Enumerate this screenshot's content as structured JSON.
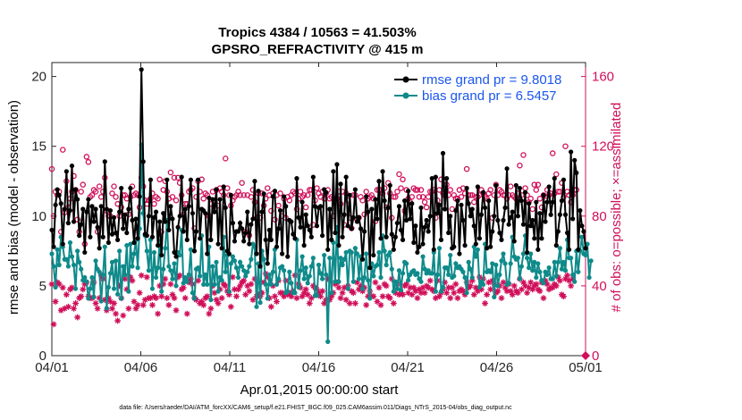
{
  "chart_data": {
    "type": "line",
    "title_line1": "Tropics 4384 / 10563 = 41.503%",
    "title_line2": "GPSRO_REFRACTIVITY @ 415 m",
    "xlabel": "Apr.01,2015 00:00:00 start",
    "ylabel_left": "rmse and bias (model - observation)",
    "ylabel_right": "# of obs: o=possible; ×=assimilated",
    "x_ticks": [
      "04/01",
      "04/06",
      "04/11",
      "04/16",
      "04/21",
      "04/26",
      "05/01"
    ],
    "x_range": [
      0,
      30
    ],
    "ylim_left": [
      0,
      21
    ],
    "y_ticks_left": [
      "0",
      "5",
      "10",
      "15",
      "20"
    ],
    "y_tick_values_left": [
      0,
      5,
      10,
      15,
      20
    ],
    "ylim_right": [
      0,
      168
    ],
    "y_ticks_right": [
      "0",
      "40",
      "80",
      "120",
      "160"
    ],
    "y_tick_values_right": [
      0,
      40,
      80,
      120,
      160
    ],
    "legend": {
      "rmse_label": "rmse grand pr = 9.8018",
      "bias_label": "bias grand pr = 6.5457"
    },
    "colors": {
      "rmse": "#000000",
      "bias": "#0f8a8a",
      "obs": "#d0105a",
      "legend_text": "#1a56ee"
    },
    "series": [
      {
        "name": "rmse",
        "values": [
          9.0,
          7.8,
          10.8,
          11.9,
          11.5,
          10.9,
          8.0,
          10.5,
          13.2,
          9.5,
          10.4,
          13.6,
          9.6,
          11.9,
          11.2,
          8.6,
          9.4,
          10.5,
          7.4,
          10.3,
          11.2,
          8.5,
          10.7,
          9.6,
          10.5,
          9.2,
          7.7,
          10.7,
          8.5,
          13.9,
          10.5,
          8.1,
          10.4,
          8.7,
          9.9,
          8.8,
          8.3,
          10.3,
          12.0,
          9.1,
          10.1,
          8.8,
          10.5,
          12.0,
          9.7,
          8.1,
          9.8,
          8.4,
          11.4,
          20.5,
          13.9,
          8.7,
          8.6,
          10.0,
          12.6,
          8.5,
          9.9,
          10.3,
          7.9,
          9.6,
          7.2,
          10.2,
          9.6,
          12.6,
          9.0,
          10.7,
          9.8,
          7.4,
          7.1,
          9.2,
          10.0,
          12.8,
          8.9,
          10.5,
          8.3,
          10.7,
          12.6,
          10.2,
          7.5,
          8.9,
          12.6,
          8.4,
          10.5,
          10.4,
          10.2,
          7.3,
          11.3,
          8.3,
          11.2,
          10.3,
          11.9,
          8.0,
          11.2,
          7.7,
          12.1,
          10.6,
          7.5,
          7.3,
          11.5,
          9.5,
          8.2,
          8.9,
          8.9,
          9.5,
          9.1,
          8.2,
          8.8,
          10.3,
          8.0,
          9.4,
          9.8,
          12.5,
          7.3,
          11.8,
          6.4,
          10.3,
          11.6,
          8.3,
          6.6,
          9.0,
          8.3,
          11.4,
          11.8,
          7.8,
          9.1,
          10.4,
          7.3,
          11.4,
          10.7,
          7.1,
          9.7,
          9.6,
          8.7,
          8.4,
          12.7,
          9.9,
          9.2,
          11.0,
          7.9,
          10.1,
          9.3,
          9.0,
          8.5,
          12.8,
          10.7,
          9.3,
          10.6,
          10.7,
          8.6,
          11.9,
          11.7,
          7.6,
          10.5,
          8.3,
          13.2,
          8.8,
          13.7,
          7.9,
          12.3,
          8.5,
          10.1,
          12.8,
          9.3,
          11.5,
          9.1,
          9.9,
          11.9,
          9.6,
          9.9,
          9.1,
          6.9,
          8.9,
          11.4,
          10.3,
          6.3,
          10.5,
          7.2,
          11.2,
          9.8,
          12.5,
          8.4,
          13.2,
          11.1,
          8.5,
          10.6,
          12.2,
          8.7,
          7.6,
          8.5,
          9.5,
          10.7,
          9.0,
          8.3,
          11.1,
          9.7,
          11.8,
          9.8,
          10.9,
          8.1,
          9.3,
          7.4,
          7.8,
          10.6,
          8.0,
          9.2,
          9.7,
          8.9,
          10.0,
          12.7,
          7.6,
          12.8,
          10.2,
          10.8,
          8.3,
          14.5,
          10.5,
          12.7,
          8.8,
          10.0,
          7.7,
          7.8,
          10.4,
          11.1,
          7.3,
          10.8,
          9.7,
          7.9,
          12.0,
          10.9,
          10.0,
          10.5,
          9.3,
          8.0,
          12.1,
          8.4,
          10.1,
          11.7,
          10.6,
          7.7,
          11.1,
          7.8,
          8.9,
          10.0,
          12.2,
          9.7,
          8.8,
          8.3,
          9.7,
          10.6,
          13.4,
          9.4,
          9.9,
          10.3,
          8.2,
          12.2,
          10.0,
          12.0,
          11.1,
          9.4,
          11.7,
          7.4,
          10.9,
          9.3,
          9.7,
          8.4,
          11.0,
          7.6,
          10.2,
          8.4,
          11.5,
          9.6,
          11.0,
          12.1,
          10.1,
          11.0,
          12.7,
          7.9,
          8.9,
          10.1,
          11.1,
          12.6,
          10.1,
          8.8,
          7.6,
          14.6,
          9.8,
          14.0,
          13.1,
          7.6,
          10.4,
          9.3,
          8.9,
          7.7
        ]
      },
      {
        "name": "bias",
        "values": [
          7.3,
          6.4,
          4.9,
          7.6,
          6.5,
          8.5,
          7.8,
          6.9,
          6.9,
          6.4,
          8.1,
          7.1,
          6.5,
          4.8,
          7.5,
          6.7,
          6.2,
          5.4,
          5.6,
          5.3,
          4.1,
          4.8,
          5.6,
          4.2,
          6.8,
          6.2,
          6.0,
          3.9,
          5.8,
          7.8,
          3.4,
          4.9,
          5.9,
          6.7,
          4.8,
          6.8,
          4.4,
          7.5,
          4.1,
          6.4,
          5.8,
          7.9,
          4.6,
          8.0,
          6.4,
          7.3,
          8.3,
          6.3,
          9.1,
          15.1,
          10.2,
          8.6,
          7.5,
          6.1,
          8.3,
          4.8,
          7.4,
          5.6,
          6.3,
          8.2,
          4.6,
          6.2,
          7.7,
          9.7,
          6.4,
          6.1,
          5.5,
          6.6,
          5.0,
          7.4,
          7.2,
          9.0,
          5.2,
          5.6,
          5.3,
          5.8,
          7.6,
          4.5,
          4.1,
          6.2,
          6.3,
          5.7,
          8.6,
          5.1,
          5.8,
          5.1,
          7.8,
          4.0,
          6.4,
          5.1,
          6.7,
          4.6,
          5.6,
          5.4,
          8.5,
          6.0,
          7.2,
          4.6,
          6.6,
          7.1,
          6.8,
          6.3,
          5.6,
          6.7,
          6.4,
          6.1,
          5.7,
          6.0,
          6.4,
          6.9,
          8.0,
          7.8,
          3.5,
          6.6,
          3.8,
          7.5,
          6.9,
          5.1,
          4.1,
          5.8,
          5.1,
          6.0,
          7.6,
          5.1,
          5.5,
          6.3,
          6.4,
          6.1,
          4.5,
          4.6,
          6.0,
          5.2,
          4.5,
          4.5,
          8.3,
          4.9,
          6.1,
          7.1,
          5.5,
          6.3,
          5.2,
          5.7,
          6.4,
          7.0,
          4.3,
          4.3,
          6.5,
          5.9,
          5.5,
          7.2,
          5.8,
          1.0,
          7.0,
          4.5,
          8.1,
          5.3,
          9.2,
          5.3,
          7.0,
          6.5,
          6.9,
          7.4,
          4.8,
          7.5,
          7.4,
          5.3,
          7.7,
          7.3,
          5.5,
          7.1,
          4.8,
          5.6,
          7.3,
          5.4,
          4.1,
          6.6,
          5.7,
          6.4,
          6.5,
          7.4,
          5.6,
          8.6,
          7.5,
          6.5,
          7.2,
          7.4,
          6.2,
          4.6,
          5.3,
          4.8,
          6.1,
          4.7,
          5.9,
          6.7,
          6.6,
          5.4,
          5.8,
          6.0,
          6.1,
          5.8,
          5.9,
          5.5,
          5.3,
          7.1,
          6.2,
          5.9,
          6.1,
          5.9,
          5.9,
          7.4,
          4.6,
          5.8,
          7.7,
          4.6,
          4.9,
          6.3,
          6.3,
          5.8,
          7.2,
          5.6,
          5.7,
          6.6,
          6.3,
          6.4,
          6.2,
          6.0,
          5.6,
          4.5,
          6.7,
          6.2,
          5.6,
          7.8,
          7.1,
          7.6,
          4.9,
          5.3,
          5.1,
          8.0,
          6.0,
          6.1,
          6.0,
          6.6,
          4.2,
          6.5,
          5.0,
          5.8,
          6.8,
          7.3,
          6.6,
          5.1,
          5.2,
          6.6,
          8.5,
          7.1,
          6.9,
          7.0,
          5.5,
          6.4,
          7.3,
          8.6,
          7.0,
          6.3,
          7.3,
          6.1,
          6.7,
          5.6,
          6.6,
          6.0,
          5.4,
          5.2,
          6.0,
          5.8,
          6.3,
          5.5,
          5.5,
          6.7,
          5.7,
          6.7,
          7.7,
          6.2,
          6.7,
          6.1,
          8.3,
          7.0,
          7.0,
          5.8,
          5.3,
          7.5,
          6.0,
          7.5,
          8.5,
          7.3,
          7.2,
          8.0,
          5.6,
          6.8
        ]
      },
      {
        "name": "obs_possible",
        "axis": "right",
        "values": [
          107,
          80,
          94,
          92,
          94,
          71,
          118,
          82,
          100,
          85,
          90,
          94,
          103,
          95,
          78,
          71,
          94,
          98,
          64,
          114,
          111,
          91,
          92,
          95,
          94,
          71,
          97,
          91,
          94,
          102,
          83,
          80,
          80,
          93,
          97,
          91,
          87,
          80,
          85,
          92,
          92,
          90,
          81,
          91,
          97,
          92,
          93,
          92,
          85,
          102,
          97,
          89,
          87,
          89,
          90,
          93,
          87,
          91,
          90,
          101,
          71,
          95,
          100,
          94,
          90,
          105,
          91,
          102,
          89,
          102,
          99,
          92,
          81,
          87,
          87,
          94,
          95,
          96,
          73,
          91,
          100,
          94,
          101,
          90,
          93,
          92,
          80,
          87,
          94,
          89,
          95,
          86,
          96,
          94,
          92,
          113,
          96,
          92,
          86,
          89,
          91,
          92,
          94,
          92,
          99,
          92,
          71,
          92,
          69,
          91,
          95,
          88,
          79,
          93,
          79,
          93,
          86,
          90,
          96,
          92,
          83,
          93,
          78,
          92,
          86,
          93,
          80,
          90,
          79,
          91,
          89,
          92,
          94,
          93,
          84,
          90,
          94,
          91,
          92,
          85,
          92,
          95,
          95,
          75,
          89,
          96,
          93,
          91,
          94,
          90,
          93,
          95,
          90,
          91,
          80,
          90,
          90,
          94,
          87,
          94,
          75,
          93,
          89,
          79,
          73,
          92,
          92,
          78,
          79,
          91,
          89,
          81,
          94,
          90,
          91,
          92,
          90,
          77,
          95,
          95,
          95,
          93,
          96,
          85,
          99,
          93,
          79,
          91,
          91,
          94,
          104,
          96,
          101,
          83,
          95,
          90,
          88,
          91,
          96,
          95,
          95,
          91,
          95,
          91,
          88,
          85,
          91,
          94,
          94,
          95,
          79,
          89,
          95,
          101,
          93,
          92,
          98,
          92,
          95,
          84,
          92,
          90,
          90,
          95,
          91,
          96,
          93,
          107,
          92,
          92,
          92,
          88,
          91,
          91,
          92,
          95,
          93,
          91,
          90,
          93,
          95,
          79,
          92,
          98,
          92,
          95,
          94,
          92,
          92,
          90,
          92,
          97,
          92,
          91,
          90,
          93,
          109,
          92,
          115,
          96,
          92,
          88,
          90,
          84,
          98,
          95,
          98,
          90,
          85,
          92,
          89,
          95,
          92,
          93,
          116,
          93,
          104,
          94,
          94,
          99,
          91,
          120,
          94,
          92,
          88,
          92,
          95,
          95
        ]
      },
      {
        "name": "obs_assimilated",
        "axis": "right",
        "values": [
          41,
          18,
          31,
          42,
          41,
          26,
          39,
          27,
          35,
          28,
          38,
          39,
          27,
          30,
          22,
          33,
          34,
          38,
          41,
          42,
          34,
          33,
          33,
          42,
          30,
          27,
          33,
          46,
          44,
          32,
          26,
          33,
          31,
          27,
          30,
          24,
          20,
          40,
          33,
          23,
          44,
          38,
          27,
          45,
          43,
          31,
          27,
          29,
          36,
          46,
          29,
          32,
          45,
          33,
          33,
          29,
          34,
          33,
          24,
          40,
          34,
          41,
          44,
          33,
          29,
          41,
          35,
          33,
          26,
          45,
          46,
          38,
          39,
          33,
          24,
          42,
          44,
          41,
          33,
          32,
          43,
          30,
          31,
          29,
          33,
          34,
          24,
          27,
          40,
          36,
          32,
          30,
          38,
          33,
          41,
          40,
          37,
          35,
          28,
          45,
          38,
          34,
          38,
          40,
          42,
          43,
          35,
          40,
          37,
          41,
          32,
          44,
          34,
          35,
          34,
          36,
          42,
          47,
          45,
          33,
          28,
          40,
          34,
          31,
          43,
          36,
          36,
          34,
          43,
          35,
          36,
          34,
          37,
          46,
          33,
          41,
          39,
          34,
          36,
          38,
          35,
          30,
          33,
          40,
          39,
          38,
          36,
          34,
          37,
          30,
          32,
          44,
          32,
          34,
          36,
          41,
          42,
          39,
          33,
          36,
          39,
          32,
          40,
          30,
          37,
          36,
          30,
          42,
          38,
          40,
          37,
          39,
          29,
          34,
          37,
          34,
          34,
          42,
          31,
          39,
          29,
          34,
          41,
          40,
          34,
          33,
          44,
          30,
          36,
          41,
          35,
          36,
          35,
          40,
          41,
          36,
          39,
          35,
          39,
          37,
          33,
          38,
          36,
          39,
          36,
          40,
          39,
          43,
          38,
          37,
          33,
          43,
          34,
          36,
          38,
          42,
          36,
          39,
          33,
          39,
          36,
          41,
          33,
          37,
          38,
          37,
          35,
          42,
          39,
          40,
          43,
          35,
          39,
          37,
          45,
          38,
          44,
          30,
          35,
          42,
          38,
          43,
          41,
          36,
          37,
          40,
          33,
          42,
          39,
          37,
          41,
          37,
          35,
          40,
          37,
          36,
          44,
          38,
          42,
          40,
          36,
          39,
          42,
          38,
          40,
          41,
          38,
          37,
          42,
          33,
          43,
          41,
          38,
          39,
          39,
          41,
          40,
          45,
          43,
          35,
          34,
          44,
          46,
          43,
          40,
          44
        ]
      }
    ]
  },
  "footer_text": "data file: /Users/raeder/DAI/ATM_forcXX/CAM6_setup/f.e21.FHIST_BGC.f09_025.CAM6assim.011/Diags_NTrS_2015-04/obs_diag_output.nc"
}
